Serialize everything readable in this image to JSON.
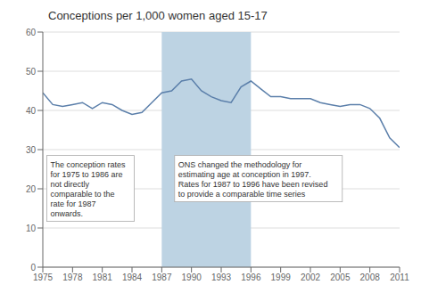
{
  "chart_data": {
    "type": "line",
    "title": "Conceptions per 1,000 women aged 15-17",
    "x": [
      1975,
      1976,
      1977,
      1978,
      1979,
      1980,
      1981,
      1982,
      1983,
      1984,
      1985,
      1986,
      1987,
      1988,
      1989,
      1990,
      1991,
      1992,
      1993,
      1994,
      1995,
      1996,
      1997,
      1998,
      1999,
      2000,
      2001,
      2002,
      2003,
      2004,
      2005,
      2006,
      2007,
      2008,
      2009,
      2010,
      2011
    ],
    "values": [
      44.5,
      41.5,
      41.0,
      41.5,
      42.0,
      40.5,
      42.0,
      41.5,
      40.0,
      39.0,
      39.5,
      42.0,
      44.5,
      45.0,
      47.5,
      48.0,
      45.0,
      43.5,
      42.5,
      42.0,
      46.0,
      47.5,
      45.5,
      43.5,
      43.5,
      43.0,
      43.0,
      43.0,
      42.0,
      41.5,
      41.0,
      41.5,
      41.5,
      40.5,
      38.0,
      33.0,
      30.5
    ],
    "color": "#5b7faa",
    "xlim": [
      1975,
      2011
    ],
    "xticks": [
      1975,
      1978,
      1981,
      1984,
      1987,
      1990,
      1993,
      1996,
      1999,
      2002,
      2005,
      2008,
      2011
    ],
    "ylim": [
      0,
      60
    ],
    "yticks": [
      0,
      10,
      20,
      30,
      40,
      50,
      60
    ],
    "grid": true,
    "shaded_region": {
      "x": [
        1987,
        1996
      ],
      "color": "#bdd3e3"
    },
    "annotations": [
      {
        "text": "The conception rates\nfor 1975 to 1986 are\nnot directly\ncomparable to the\nrate for 1987\nonwards.",
        "x": 1975.4,
        "y": 28.5
      },
      {
        "text": "ONS changed the methodology for\nestimating age at conception in 1997.\nRates for 1987 to 1996 have been revised\nto provide a comparable time series",
        "x": 1988.3,
        "y": 28.5
      }
    ]
  }
}
